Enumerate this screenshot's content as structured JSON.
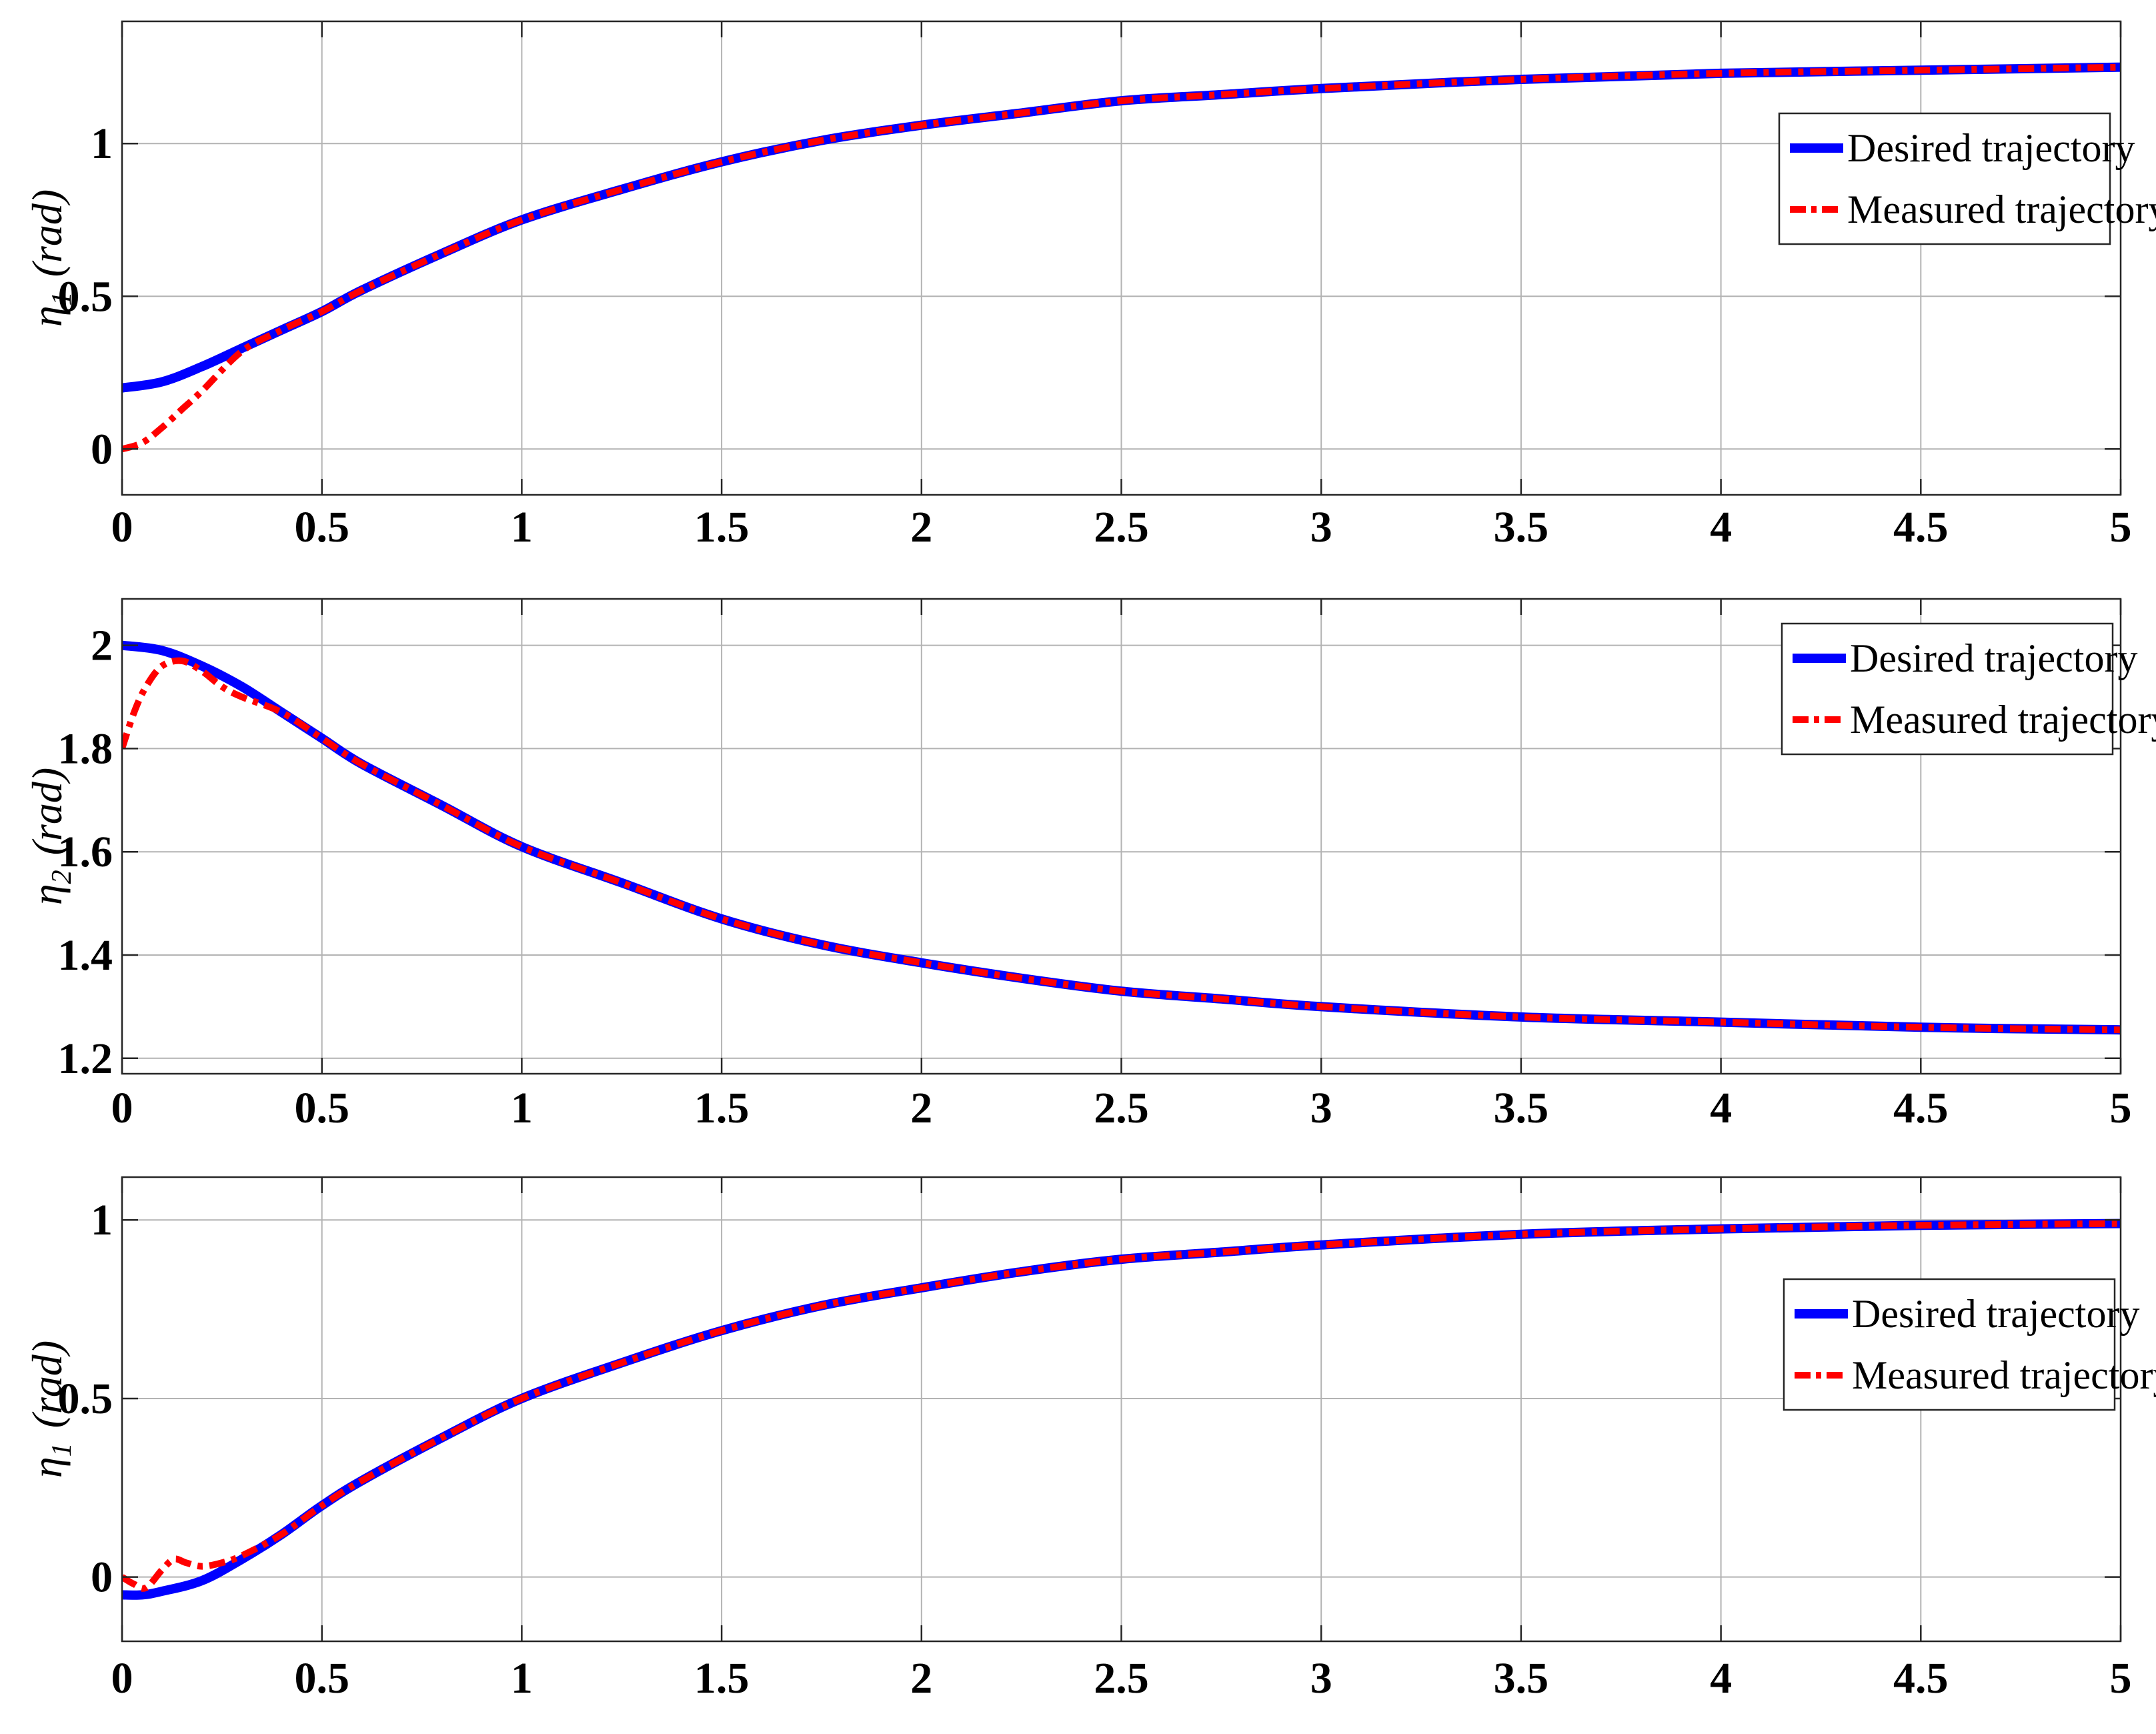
{
  "chart_data": [
    {
      "type": "line",
      "ylabel": "η₁ (rad)",
      "ylabel_main": "η",
      "ylabel_sub": "1",
      "ylabel_unit": "(rad)",
      "xlim": [
        0,
        5
      ],
      "ylim": [
        -0.15,
        1.4
      ],
      "xticks": [
        "0",
        "0.5",
        "1",
        "1.5",
        "2",
        "2.5",
        "3",
        "3.5",
        "4",
        "4.5",
        "5"
      ],
      "yticks": [
        "0",
        "0.5",
        "1"
      ],
      "ytick_values": [
        0,
        0.5,
        1
      ],
      "grid": true,
      "legend_position": "top-right",
      "series": [
        {
          "name": "Desired trajectory",
          "color": "#0000ff",
          "style": "solid",
          "x": [
            0,
            0.1,
            0.2,
            0.3,
            0.4,
            0.5,
            0.6,
            0.8,
            1,
            1.25,
            1.5,
            1.75,
            2,
            2.25,
            2.5,
            2.75,
            3,
            3.5,
            4,
            4.5,
            5
          ],
          "y": [
            0.2,
            0.22,
            0.27,
            0.33,
            0.39,
            0.45,
            0.52,
            0.64,
            0.75,
            0.85,
            0.94,
            1.01,
            1.06,
            1.1,
            1.14,
            1.16,
            1.18,
            1.21,
            1.23,
            1.24,
            1.25
          ]
        },
        {
          "name": "Measured trajectory",
          "color": "#ff0000",
          "style": "dash-dot",
          "x": [
            0,
            0.05,
            0.1,
            0.15,
            0.2,
            0.3,
            0.4,
            0.5,
            0.6,
            0.8,
            1,
            1.25,
            1.5,
            1.75,
            2,
            2.25,
            2.5,
            2.75,
            3,
            3.5,
            4,
            4.5,
            5
          ],
          "y": [
            0,
            0.02,
            0.07,
            0.13,
            0.19,
            0.32,
            0.39,
            0.45,
            0.52,
            0.64,
            0.75,
            0.85,
            0.94,
            1.01,
            1.06,
            1.1,
            1.14,
            1.16,
            1.18,
            1.21,
            1.23,
            1.24,
            1.25
          ]
        }
      ]
    },
    {
      "type": "line",
      "ylabel": "η₂ (rad)",
      "ylabel_main": "η",
      "ylabel_sub": "2",
      "ylabel_unit": "(rad)",
      "xlim": [
        0,
        5
      ],
      "ylim": [
        1.17,
        2.09
      ],
      "xticks": [
        "0",
        "0.5",
        "1",
        "1.5",
        "2",
        "2.5",
        "3",
        "3.5",
        "4",
        "4.5",
        "5"
      ],
      "yticks": [
        "1.2",
        "1.4",
        "1.6",
        "1.8",
        "2"
      ],
      "ytick_values": [
        1.2,
        1.4,
        1.6,
        1.8,
        2.0
      ],
      "grid": true,
      "legend_position": "top-right",
      "series": [
        {
          "name": "Desired trajectory",
          "color": "#0000ff",
          "style": "solid",
          "x": [
            0,
            0.1,
            0.2,
            0.3,
            0.4,
            0.5,
            0.6,
            0.8,
            1,
            1.25,
            1.5,
            1.75,
            2,
            2.25,
            2.5,
            2.75,
            3,
            3.5,
            4,
            4.5,
            5
          ],
          "y": [
            2.0,
            1.99,
            1.96,
            1.92,
            1.87,
            1.82,
            1.77,
            1.69,
            1.61,
            1.54,
            1.47,
            1.42,
            1.385,
            1.355,
            1.33,
            1.315,
            1.3,
            1.28,
            1.27,
            1.26,
            1.255
          ]
        },
        {
          "name": "Measured trajectory",
          "color": "#ff0000",
          "style": "dash-dot",
          "x": [
            0,
            0.03,
            0.06,
            0.1,
            0.15,
            0.2,
            0.25,
            0.3,
            0.4,
            0.5,
            0.6,
            0.8,
            1,
            1.25,
            1.5,
            1.75,
            2,
            2.25,
            2.5,
            2.75,
            3,
            3.5,
            4,
            4.5,
            5
          ],
          "y": [
            1.8,
            1.87,
            1.92,
            1.96,
            1.97,
            1.95,
            1.92,
            1.9,
            1.87,
            1.82,
            1.77,
            1.69,
            1.61,
            1.54,
            1.47,
            1.42,
            1.385,
            1.355,
            1.33,
            1.315,
            1.3,
            1.28,
            1.27,
            1.26,
            1.255
          ]
        }
      ]
    },
    {
      "type": "line",
      "ylabel": "η₁ (rad)",
      "ylabel_main": "η",
      "ylabel_sub": "1",
      "ylabel_unit": "(rad)",
      "xlim": [
        0,
        5
      ],
      "ylim": [
        -0.18,
        1.12
      ],
      "xticks": [
        "0",
        "0.5",
        "1",
        "1.5",
        "2",
        "2.5",
        "3",
        "3.5",
        "4",
        "4.5",
        "5"
      ],
      "yticks": [
        "0",
        "0.5",
        "1"
      ],
      "ytick_values": [
        0,
        0.5,
        1
      ],
      "grid": true,
      "legend_position": "right",
      "series": [
        {
          "name": "Desired trajectory",
          "color": "#0000ff",
          "style": "solid",
          "x": [
            0,
            0.05,
            0.1,
            0.2,
            0.3,
            0.4,
            0.5,
            0.6,
            0.8,
            1,
            1.25,
            1.5,
            1.75,
            2,
            2.25,
            2.5,
            2.75,
            3,
            3.5,
            4,
            4.5,
            5
          ],
          "y": [
            -0.05,
            -0.05,
            -0.04,
            -0.01,
            0.05,
            0.12,
            0.2,
            0.27,
            0.39,
            0.5,
            0.6,
            0.69,
            0.76,
            0.81,
            0.855,
            0.89,
            0.91,
            0.93,
            0.96,
            0.975,
            0.985,
            0.99
          ]
        },
        {
          "name": "Measured trajectory",
          "color": "#ff0000",
          "style": "dash-dot",
          "x": [
            0,
            0.03,
            0.06,
            0.1,
            0.13,
            0.16,
            0.2,
            0.25,
            0.3,
            0.4,
            0.5,
            0.6,
            0.8,
            1,
            1.25,
            1.5,
            1.75,
            2,
            2.25,
            2.5,
            2.75,
            3,
            3.5,
            4,
            4.5,
            5
          ],
          "y": [
            0,
            -0.02,
            -0.03,
            0.02,
            0.05,
            0.04,
            0.03,
            0.04,
            0.06,
            0.12,
            0.2,
            0.27,
            0.39,
            0.5,
            0.6,
            0.69,
            0.76,
            0.81,
            0.855,
            0.89,
            0.91,
            0.93,
            0.96,
            0.975,
            0.985,
            0.99
          ]
        }
      ]
    }
  ]
}
